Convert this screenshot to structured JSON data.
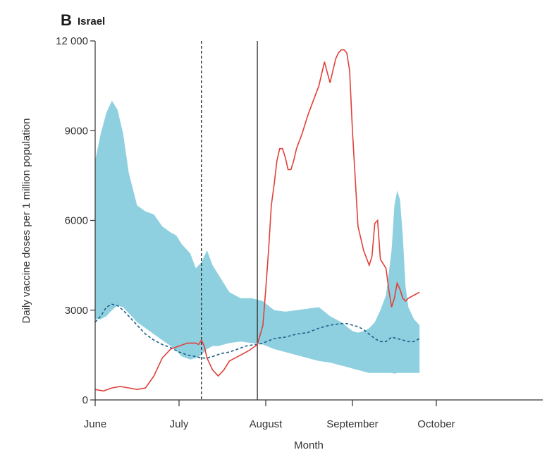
{
  "chart_data": {
    "type": "line",
    "panel_letter": "B",
    "title": "Israel",
    "xlabel": "Month",
    "ylabel": "Daily vaccine doses per 1 million population",
    "xlim": [
      0,
      152
    ],
    "ylim": [
      0,
      12000
    ],
    "x_unit": "days since 1 June",
    "x_ticks": [
      {
        "value": 0,
        "label": "June"
      },
      {
        "value": 30,
        "label": "July"
      },
      {
        "value": 61,
        "label": "August"
      },
      {
        "value": 92,
        "label": "September"
      },
      {
        "value": 122,
        "label": "October"
      }
    ],
    "y_ticks": [
      {
        "value": 0,
        "label": "0"
      },
      {
        "value": 3000,
        "label": "3000"
      },
      {
        "value": 6000,
        "label": "6000"
      },
      {
        "value": 9000,
        "label": "9000"
      },
      {
        "value": 12000,
        "label": "12 000"
      }
    ],
    "vertical_lines": [
      {
        "x": 38,
        "style": "dashed"
      },
      {
        "x": 58,
        "style": "solid"
      }
    ],
    "colors": {
      "band": "#8fd0e0",
      "observed": "#e0403a",
      "expected": "#1f5f8a",
      "vline": "#222222",
      "axis": "#333333"
    },
    "series": [
      {
        "kind": "band",
        "x": [
          0,
          2,
          4,
          6,
          8,
          10,
          12,
          15,
          18,
          21,
          24,
          27,
          29,
          31,
          34,
          36,
          38,
          40,
          42,
          44,
          46,
          48,
          52,
          56,
          60,
          64,
          68,
          72,
          76,
          80,
          84,
          88,
          90,
          92,
          94,
          96,
          98,
          100,
          102,
          104,
          106,
          107,
          108,
          109,
          110,
          111,
          112,
          114,
          116
        ],
        "upper": [
          8000,
          8900,
          9600,
          10000,
          9700,
          8900,
          7600,
          6500,
          6300,
          6200,
          5800,
          5600,
          5500,
          5200,
          4900,
          4400,
          4600,
          5000,
          4500,
          4200,
          3900,
          3600,
          3400,
          3400,
          3300,
          3000,
          2950,
          3000,
          3050,
          3100,
          2800,
          2600,
          2450,
          2300,
          2250,
          2300,
          2400,
          2600,
          3000,
          3500,
          5000,
          6500,
          7000,
          6700,
          5500,
          3800,
          3100,
          2700,
          2500
        ],
        "lower": [
          2700,
          2700,
          2800,
          3000,
          3150,
          3100,
          2900,
          2600,
          2400,
          2200,
          2000,
          1800,
          1650,
          1450,
          1350,
          1400,
          1500,
          1700,
          1800,
          1800,
          1850,
          1900,
          1950,
          1900,
          1850,
          1700,
          1600,
          1500,
          1400,
          1300,
          1250,
          1150,
          1100,
          1050,
          1000,
          950,
          900,
          900,
          900,
          900,
          900,
          880,
          900,
          900,
          900,
          900,
          900,
          900,
          900
        ]
      },
      {
        "kind": "line",
        "style": "dashed",
        "x": [
          0,
          2,
          4,
          6,
          8,
          10,
          12,
          15,
          18,
          21,
          24,
          27,
          30,
          33,
          36,
          38,
          40,
          42,
          45,
          48,
          51,
          54,
          57,
          58,
          60,
          64,
          68,
          72,
          76,
          80,
          84,
          88,
          90,
          92,
          94,
          96,
          98,
          100,
          102,
          104,
          106,
          108,
          110,
          112,
          114,
          116
        ],
        "y": [
          2600,
          2800,
          3100,
          3200,
          3150,
          3000,
          2800,
          2500,
          2200,
          2000,
          1850,
          1750,
          1600,
          1500,
          1450,
          1400,
          1400,
          1450,
          1550,
          1600,
          1700,
          1800,
          1850,
          1850,
          1900,
          2050,
          2100,
          2200,
          2250,
          2400,
          2500,
          2550,
          2550,
          2500,
          2450,
          2350,
          2200,
          2050,
          1950,
          1950,
          2100,
          2050,
          2000,
          1950,
          1950,
          2050
        ]
      },
      {
        "kind": "line",
        "style": "solid",
        "x": [
          0,
          3,
          6,
          9,
          12,
          15,
          18,
          21,
          24,
          27,
          30,
          33,
          36,
          37,
          38,
          39,
          40,
          42,
          44,
          46,
          48,
          50,
          52,
          55,
          58,
          60,
          61,
          62,
          63,
          64,
          65,
          66,
          67,
          68,
          69,
          70,
          71,
          72,
          74,
          76,
          78,
          80,
          82,
          84,
          86,
          87,
          88,
          89,
          90,
          91,
          92,
          94,
          96,
          98,
          99,
          100,
          101,
          102,
          104,
          105,
          106,
          107,
          108,
          109,
          110,
          111,
          112,
          114,
          116
        ],
        "y": [
          350,
          300,
          400,
          450,
          400,
          350,
          400,
          800,
          1400,
          1700,
          1800,
          1900,
          1900,
          1850,
          2000,
          1800,
          1400,
          1000,
          800,
          1000,
          1300,
          1400,
          1500,
          1650,
          1850,
          2500,
          3700,
          5000,
          6500,
          7200,
          8000,
          8400,
          8400,
          8100,
          7700,
          7700,
          8000,
          8400,
          8900,
          9500,
          10000,
          10500,
          11300,
          10600,
          11400,
          11600,
          11700,
          11700,
          11600,
          11000,
          9000,
          5800,
          5000,
          4500,
          4800,
          5900,
          6000,
          4700,
          4400,
          3700,
          3100,
          3400,
          3900,
          3700,
          3400,
          3300,
          3400,
          3500,
          3600
        ]
      }
    ]
  }
}
